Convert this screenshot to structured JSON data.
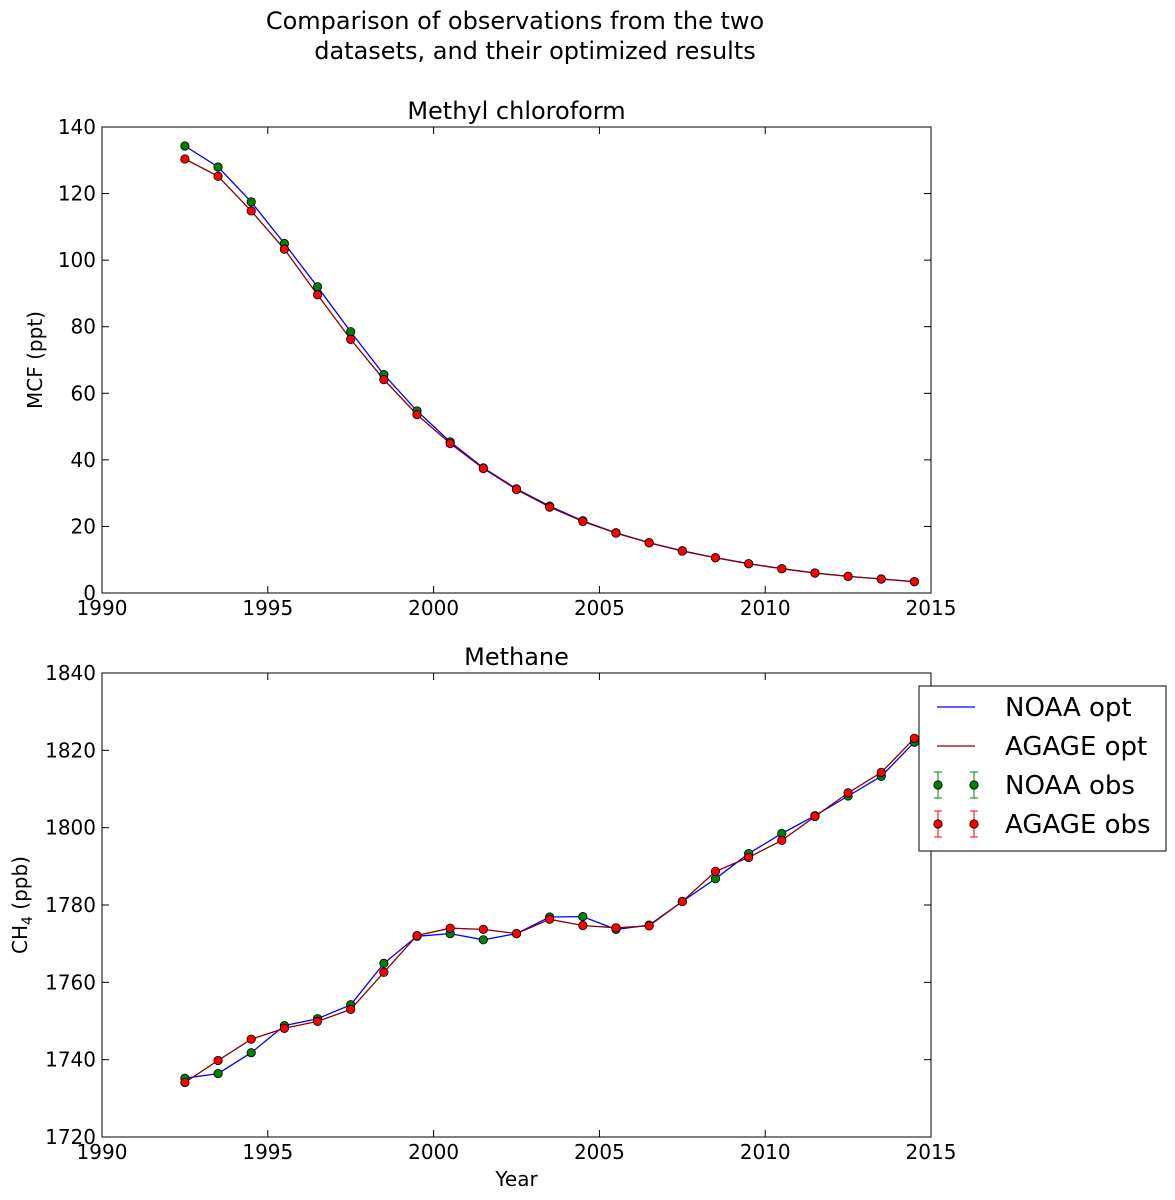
{
  "figure": {
    "title_line1": "Comparison of observations from the two",
    "title_line2": "datasets, and their optimized results"
  },
  "chart_data": [
    {
      "type": "line",
      "title": "Methyl chloroform",
      "xlabel": "",
      "ylabel": "MCF (ppt)",
      "xlim": [
        1990,
        2015
      ],
      "ylim": [
        0,
        140
      ],
      "xticks": [
        1990,
        1995,
        2000,
        2005,
        2010,
        2015
      ],
      "yticks": [
        0,
        20,
        40,
        60,
        80,
        100,
        120,
        140
      ],
      "x": [
        1992.5,
        1993.5,
        1994.5,
        1995.5,
        1996.5,
        1997.5,
        1998.5,
        1999.5,
        2000.5,
        2001.5,
        2002.5,
        2003.5,
        2004.5,
        2005.5,
        2006.5,
        2007.5,
        2008.5,
        2009.5,
        2010.5,
        2011.5,
        2012.5,
        2013.5,
        2014.5
      ],
      "series": [
        {
          "name": "NOAA opt",
          "kind": "line",
          "color": "#0000ff",
          "values": [
            134.3,
            128.0,
            117.5,
            105.0,
            92.0,
            78.5,
            65.6,
            54.7,
            45.4,
            37.6,
            31.3,
            26.1,
            21.7,
            18.1,
            15.1,
            12.7,
            10.6,
            8.8,
            7.3,
            6.0,
            5.0,
            4.2,
            3.4
          ]
        },
        {
          "name": "AGAGE opt",
          "kind": "line",
          "color": "#8b0000",
          "values": [
            130.4,
            125.2,
            114.8,
            103.3,
            89.6,
            76.2,
            64.1,
            53.6,
            44.9,
            37.4,
            31.1,
            25.8,
            21.5,
            18.0,
            15.1,
            12.6,
            10.6,
            8.8,
            7.3,
            6.0,
            5.0,
            4.2,
            3.4
          ]
        },
        {
          "name": "NOAA obs",
          "kind": "points",
          "color": "#008000",
          "values": [
            134.3,
            128.0,
            117.5,
            105.0,
            92.0,
            78.5,
            65.6,
            54.7,
            45.4,
            37.6,
            31.3,
            26.1,
            21.7,
            18.1,
            15.1,
            12.7,
            10.6,
            8.8,
            7.3,
            6.0,
            5.0,
            4.2,
            3.4
          ]
        },
        {
          "name": "AGAGE obs",
          "kind": "points",
          "color": "#ff0000",
          "values": [
            130.4,
            125.2,
            114.8,
            103.3,
            89.6,
            76.2,
            64.1,
            53.6,
            44.9,
            37.4,
            31.1,
            25.8,
            21.5,
            18.0,
            15.1,
            12.6,
            10.6,
            8.8,
            7.3,
            6.0,
            5.0,
            4.2,
            3.4
          ]
        }
      ]
    },
    {
      "type": "line",
      "title": "Methane",
      "xlabel": "Year",
      "ylabel": "CH",
      "ylabel_sub": "4",
      "ylabel_unit": " (ppb)",
      "xlim": [
        1990,
        2015
      ],
      "ylim": [
        1720,
        1840
      ],
      "xticks": [
        1990,
        1995,
        2000,
        2005,
        2010,
        2015
      ],
      "yticks": [
        1720,
        1740,
        1760,
        1780,
        1800,
        1820,
        1840
      ],
      "legend_position": "outside-right",
      "x": [
        1992.5,
        1993.5,
        1994.5,
        1995.5,
        1996.5,
        1997.5,
        1998.5,
        1999.5,
        2000.5,
        2001.5,
        2002.5,
        2003.5,
        2004.5,
        2005.5,
        2006.5,
        2007.5,
        2008.5,
        2009.5,
        2010.5,
        2011.5,
        2012.5,
        2013.5,
        2014.5
      ],
      "series": [
        {
          "name": "NOAA opt",
          "kind": "line",
          "color": "#0000ff",
          "values": [
            1735.2,
            1736.4,
            1741.8,
            1748.8,
            1750.6,
            1754.2,
            1764.9,
            1771.9,
            1772.6,
            1771.0,
            1772.6,
            1776.9,
            1777.0,
            1773.7,
            1774.8,
            1780.9,
            1786.8,
            1793.3,
            1798.5,
            1803.1,
            1808.2,
            1813.3,
            1822.1
          ]
        },
        {
          "name": "AGAGE opt",
          "kind": "line",
          "color": "#8b0000",
          "values": [
            1734.1,
            1739.8,
            1745.3,
            1748.1,
            1749.9,
            1753.0,
            1762.6,
            1772.1,
            1774.0,
            1773.7,
            1772.6,
            1776.3,
            1774.7,
            1774.1,
            1774.6,
            1780.9,
            1788.7,
            1792.3,
            1796.7,
            1802.9,
            1809.0,
            1814.3,
            1823.1
          ]
        },
        {
          "name": "NOAA obs",
          "kind": "points",
          "color": "#008000",
          "values": [
            1735.2,
            1736.4,
            1741.8,
            1748.8,
            1750.6,
            1754.2,
            1764.9,
            1771.9,
            1772.6,
            1771.0,
            1772.6,
            1776.9,
            1777.0,
            1773.7,
            1774.8,
            1780.9,
            1786.8,
            1793.3,
            1798.5,
            1803.1,
            1808.2,
            1813.3,
            1822.1
          ]
        },
        {
          "name": "AGAGE obs",
          "kind": "points",
          "color": "#ff0000",
          "values": [
            1734.1,
            1739.8,
            1745.3,
            1748.1,
            1749.9,
            1753.0,
            1762.6,
            1772.1,
            1774.0,
            1773.7,
            1772.6,
            1776.3,
            1774.7,
            1774.1,
            1774.6,
            1780.9,
            1788.7,
            1792.3,
            1796.7,
            1802.9,
            1809.0,
            1814.3,
            1823.1
          ]
        }
      ]
    }
  ]
}
